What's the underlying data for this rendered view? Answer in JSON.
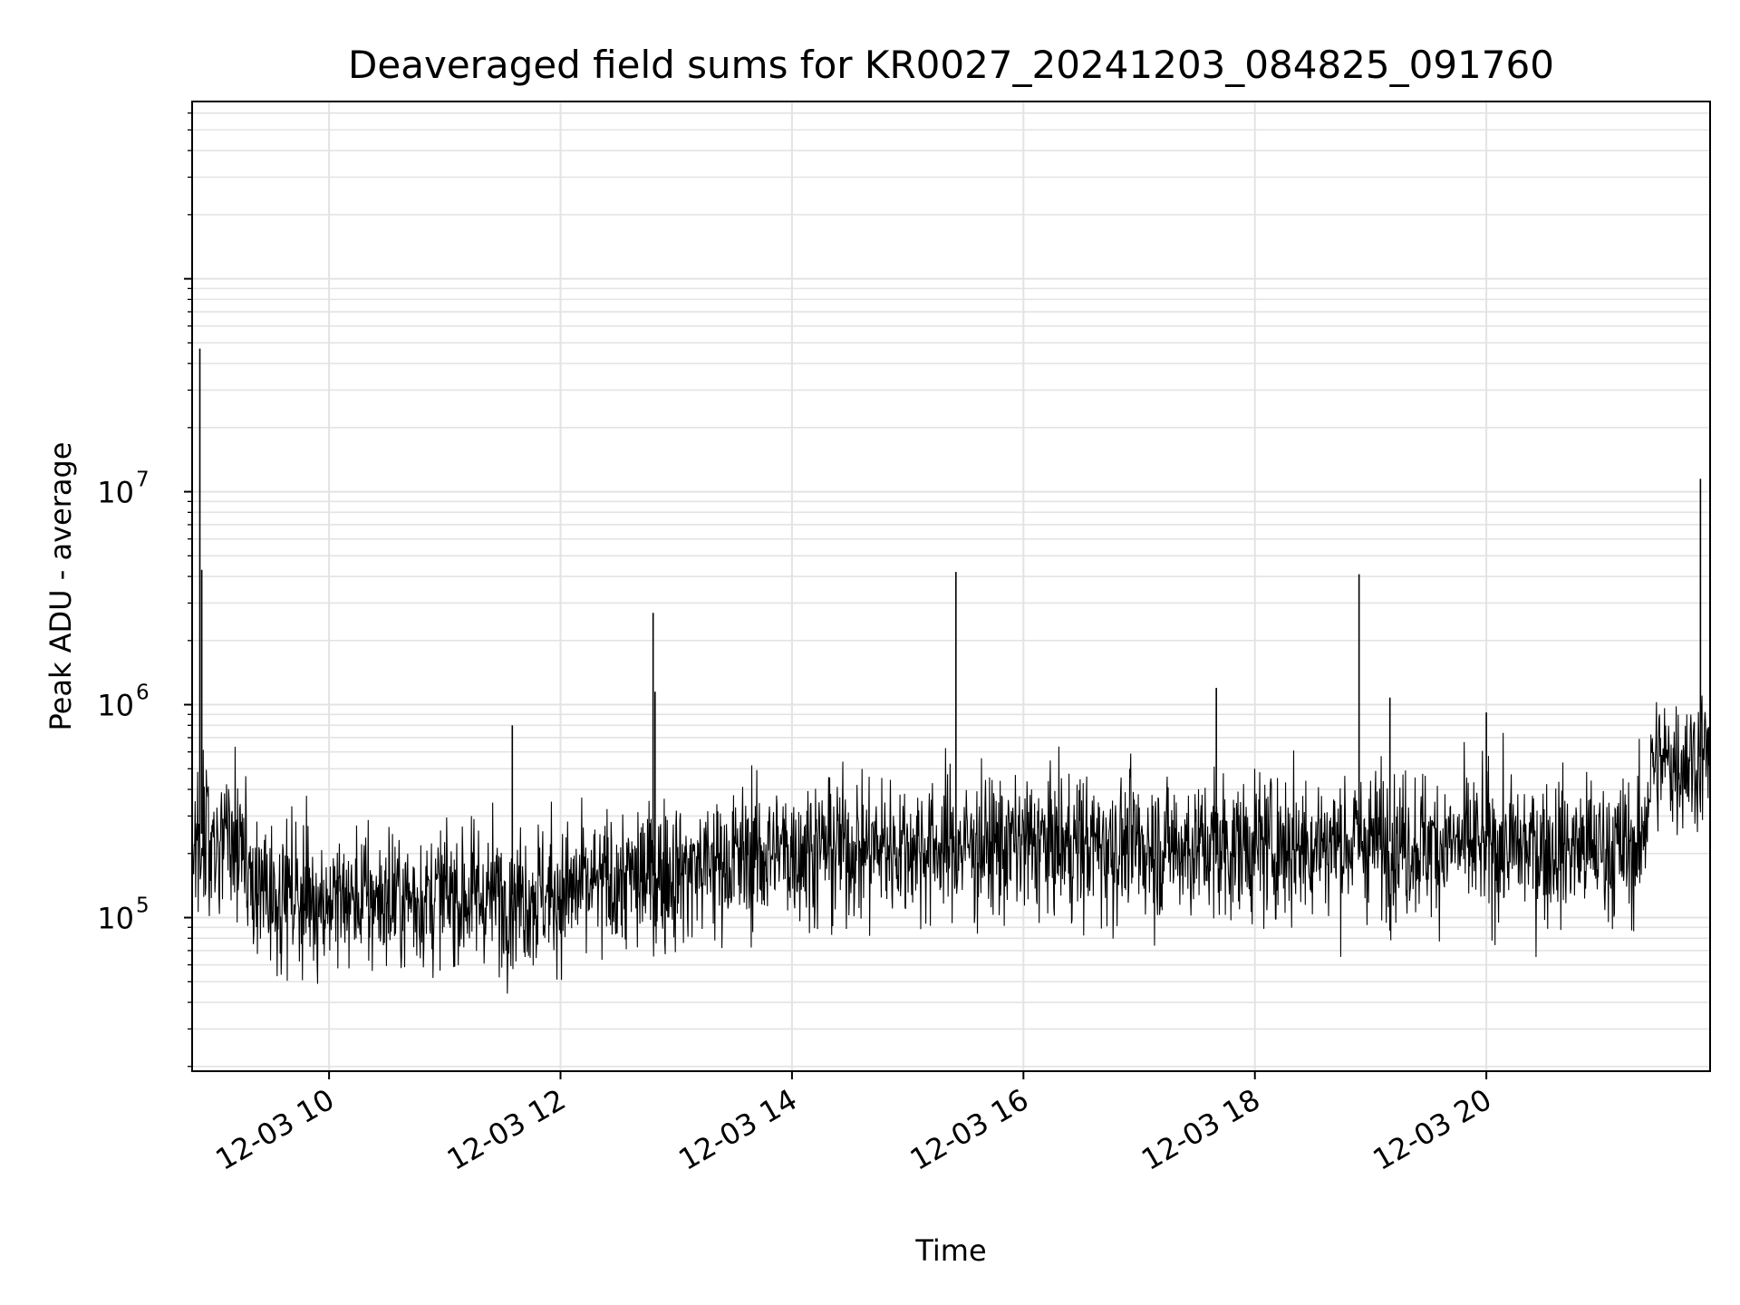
{
  "chart_data": {
    "type": "line",
    "title": "Deaveraged field sums for KR0027_20241203_084825_091760",
    "xlabel": "Time",
    "ylabel": "Peak ADU - average",
    "x_scale": "time",
    "y_scale": "log",
    "xlim": [
      "2024-12-03 08:49",
      "2024-12-03 21:56"
    ],
    "ylim": [
      19000,
      680000000
    ],
    "x_ticks": [
      "12-03 10",
      "12-03 12",
      "12-03 14",
      "12-03 16",
      "12-03 18",
      "12-03 20"
    ],
    "x_tick_times": [
      "2024-12-03 10:00",
      "2024-12-03 12:00",
      "2024-12-03 14:00",
      "2024-12-03 16:00",
      "2024-12-03 18:00",
      "2024-12-03 20:00"
    ],
    "y_ticks": [
      {
        "base": "10",
        "exp": "5",
        "value": 100000
      },
      {
        "base": "10",
        "exp": "6",
        "value": 1000000
      },
      {
        "base": "10",
        "exp": "7",
        "value": 10000000
      }
    ],
    "grid": true,
    "line_color": "#000000",
    "series": [
      {
        "baseline": [
          {
            "x": "2024-12-03 08:49",
            "y": 250000
          },
          {
            "x": "2024-12-03 09:10",
            "y": 240000
          },
          {
            "x": "2024-12-03 09:20",
            "y": 140000
          },
          {
            "x": "2024-12-03 10:00",
            "y": 120000
          },
          {
            "x": "2024-12-03 11:00",
            "y": 125000
          },
          {
            "x": "2024-12-03 12:00",
            "y": 130000
          },
          {
            "x": "2024-12-03 13:00",
            "y": 165000
          },
          {
            "x": "2024-12-03 14:00",
            "y": 210000
          },
          {
            "x": "2024-12-03 16:00",
            "y": 220000
          },
          {
            "x": "2024-12-03 18:00",
            "y": 215000
          },
          {
            "x": "2024-12-03 19:00",
            "y": 230000
          },
          {
            "x": "2024-12-03 20:00",
            "y": 215000
          },
          {
            "x": "2024-12-03 21:20",
            "y": 210000
          },
          {
            "x": "2024-12-03 21:26",
            "y": 520000
          },
          {
            "x": "2024-12-03 21:56",
            "y": 580000
          }
        ],
        "spikes": [
          {
            "x": "2024-12-03 08:53",
            "y": 47000000
          },
          {
            "x": "2024-12-03 08:54",
            "y": 4300000
          },
          {
            "x": "2024-12-03 11:35",
            "y": 800000
          },
          {
            "x": "2024-12-03 12:48",
            "y": 2700000
          },
          {
            "x": "2024-12-03 12:49",
            "y": 1150000
          },
          {
            "x": "2024-12-03 15:25",
            "y": 4200000
          },
          {
            "x": "2024-12-03 17:40",
            "y": 1200000
          },
          {
            "x": "2024-12-03 18:54",
            "y": 4100000
          },
          {
            "x": "2024-12-03 19:10",
            "y": 1080000
          },
          {
            "x": "2024-12-03 20:00",
            "y": 920000
          },
          {
            "x": "2024-12-03 21:51",
            "y": 11500000
          }
        ]
      }
    ]
  }
}
